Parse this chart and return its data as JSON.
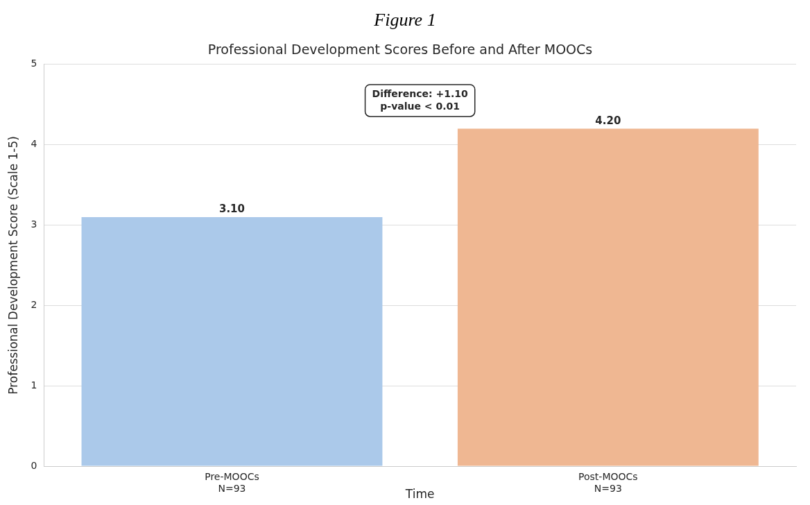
{
  "chart_data": {
    "type": "bar",
    "title": "Figure 1",
    "subtitle": "Professional Development Scores Before and After MOOCs",
    "xlabel": "Time",
    "ylabel": "Professional Development Score (Scale 1-5)",
    "categories": [
      "Pre-MOOCs\nN=93",
      "Post-MOOCs\nN=93"
    ],
    "values": [
      3.1,
      4.2
    ],
    "colors": [
      "#abc9ea",
      "#efb792"
    ],
    "value_labels": [
      "3.10",
      "4.20"
    ],
    "annotations": [
      "Difference: +1.10\np-value < 0.01"
    ],
    "ylim": [
      0,
      5
    ],
    "yticks": [
      0,
      1,
      2,
      3,
      4,
      5
    ],
    "grid": "y"
  }
}
